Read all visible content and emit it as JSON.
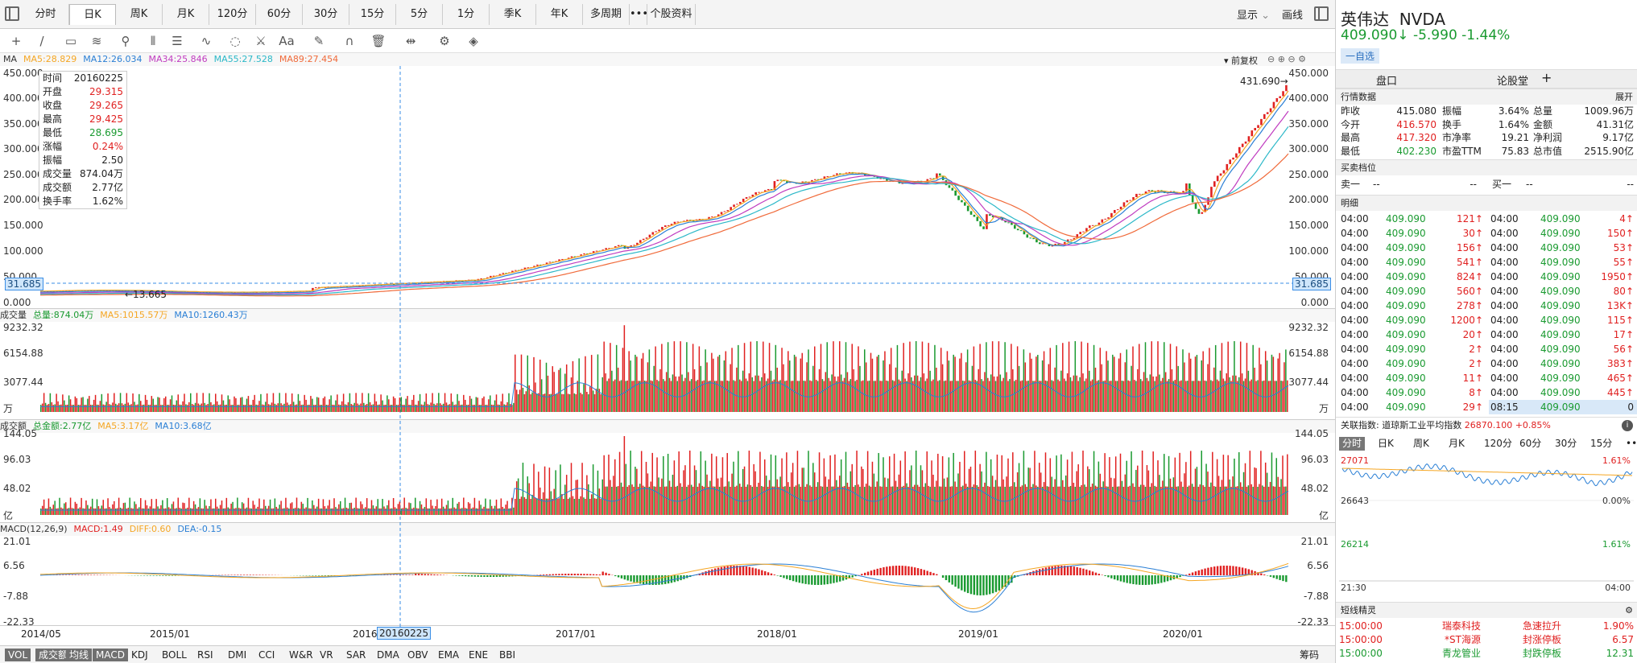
{
  "toolbar": {
    "tabs": [
      "分时",
      "日K",
      "周K",
      "月K",
      "120分",
      "60分",
      "30分",
      "15分",
      "5分",
      "1分",
      "季K",
      "年K",
      "多周期",
      "•••",
      "个股资料"
    ],
    "active": 1,
    "display": "显示",
    "chevron": "⌄",
    "draw": "画线"
  },
  "tools": [
    "+",
    "/",
    "▭",
    "≋",
    "⚲",
    "⦀",
    "☰",
    "∿",
    "◌",
    "⚔",
    "Aa",
    "✎",
    "∩",
    "🗑",
    "⇹",
    "⚙",
    "◈"
  ],
  "main": {
    "ma": [
      {
        "t": "MA",
        "c": "#333"
      },
      {
        "t": "MA5:28.829",
        "c": "#f5a623"
      },
      {
        "t": "MA12:26.034",
        "c": "#2a7fd5"
      },
      {
        "t": "MA34:25.846",
        "c": "#c03cc0"
      },
      {
        "t": "MA55:27.528",
        "c": "#2bb8c8"
      },
      {
        "t": "MA89:27.454",
        "c": "#f06a3a"
      }
    ],
    "fq": "前复权",
    "yl": [
      "450.000",
      "400.000",
      "350.000",
      "300.000",
      "250.000",
      "200.000",
      "150.000",
      "100.000",
      "50.000",
      "0.000"
    ],
    "cross": "31.685",
    "max": "431.690→",
    "min": "←13.665"
  },
  "info": [
    [
      "时间",
      "20160225",
      ""
    ],
    [
      "开盘",
      "29.315",
      "red"
    ],
    [
      "收盘",
      "29.265",
      "red"
    ],
    [
      "最高",
      "29.425",
      "red"
    ],
    [
      "最低",
      "28.695",
      "green"
    ],
    [
      "涨幅",
      "0.24%",
      "red"
    ],
    [
      "振幅",
      "2.50",
      ""
    ],
    [
      "成交量",
      "874.04万",
      ""
    ],
    [
      "成交额",
      "2.77亿",
      ""
    ],
    [
      "换手率",
      "1.62%",
      ""
    ]
  ],
  "vol": {
    "h": [
      {
        "t": "成交量",
        "c": "#333"
      },
      {
        "t": "总量:874.04万",
        "c": "#1a9a30"
      },
      {
        "t": "MA5:1015.57万",
        "c": "#f5a623"
      },
      {
        "t": "MA10:1260.43万",
        "c": "#2a7fd5"
      }
    ],
    "yl": [
      "9232.32",
      "6154.88",
      "3077.44"
    ],
    "unit": "万"
  },
  "amt": {
    "h": [
      {
        "t": "成交额",
        "c": "#333"
      },
      {
        "t": "总金额:2.77亿",
        "c": "#1a9a30"
      },
      {
        "t": "MA5:3.17亿",
        "c": "#f5a623"
      },
      {
        "t": "MA10:3.68亿",
        "c": "#2a7fd5"
      }
    ],
    "yl": [
      "144.05",
      "96.03",
      "48.02"
    ],
    "unit": "亿"
  },
  "macd": {
    "h": [
      {
        "t": "MACD(12,26,9)",
        "c": "#333"
      },
      {
        "t": "MACD:1.49",
        "c": "#e02020"
      },
      {
        "t": "DIFF:0.60",
        "c": "#f5a623"
      },
      {
        "t": "DEA:-0.15",
        "c": "#2a7fd5"
      }
    ],
    "yl": [
      "21.01",
      "6.56",
      "-7.88",
      "-22.33"
    ]
  },
  "xaxis": [
    "2014/05",
    "2015/01",
    "2016/",
    "20160225",
    "2017/01",
    "2018/01",
    "2019/01",
    "2020/01"
  ],
  "bottom": [
    "VOL",
    "成交额",
    "均线",
    "MACD",
    "KDJ",
    "BOLL",
    "RSI",
    "DMI",
    "CCI",
    "W&R",
    "VR",
    "SAR",
    "DMA",
    "OBV",
    "EMA",
    "ENE",
    "BBI"
  ],
  "bottom_on": [
    0,
    1,
    2,
    3
  ],
  "chips": "筹码",
  "stock": {
    "name": "英伟达",
    "code": "NVDA",
    "price": "409.090↓",
    "chg": "-5.990",
    "pct": "-1.44%",
    "fav": "一自选",
    "tabs": [
      "盘口",
      "论股堂",
      "+"
    ]
  },
  "quote_title": "行情数据",
  "expand": "展开",
  "quote": [
    [
      "昨收",
      "415.080",
      "",
      "振幅",
      "3.64%",
      "总量",
      "1009.96万"
    ],
    [
      "今开",
      "416.570",
      "red",
      "换手",
      "1.64%",
      "金额",
      "41.31亿"
    ],
    [
      "最高",
      "417.320",
      "red",
      "市净率",
      "19.21",
      "净利润",
      "9.17亿"
    ],
    [
      "最低",
      "402.230",
      "green",
      "市盈TTM",
      "75.83",
      "总市值",
      "2515.90亿"
    ]
  ],
  "bidask_title": "买卖档位",
  "bidask": [
    "卖一",
    "--",
    "--",
    "买一",
    "--",
    "--"
  ],
  "detail_title": "明细",
  "ticks": [
    [
      "04:00",
      "409.090",
      "121↑",
      "04:00",
      "409.090",
      "4↑"
    ],
    [
      "04:00",
      "409.090",
      "30↑",
      "04:00",
      "409.090",
      "150↑"
    ],
    [
      "04:00",
      "409.090",
      "156↑",
      "04:00",
      "409.090",
      "53↑"
    ],
    [
      "04:00",
      "409.090",
      "541↑",
      "04:00",
      "409.090",
      "55↑"
    ],
    [
      "04:00",
      "409.090",
      "824↑",
      "04:00",
      "409.090",
      "1950↑"
    ],
    [
      "04:00",
      "409.090",
      "560↑",
      "04:00",
      "409.090",
      "80↑"
    ],
    [
      "04:00",
      "409.090",
      "278↑",
      "04:00",
      "409.090",
      "13K↑"
    ],
    [
      "04:00",
      "409.090",
      "1200↑",
      "04:00",
      "409.090",
      "115↑"
    ],
    [
      "04:00",
      "409.090",
      "20↑",
      "04:00",
      "409.090",
      "17↑"
    ],
    [
      "04:00",
      "409.090",
      "2↑",
      "04:00",
      "409.090",
      "56↑"
    ],
    [
      "04:00",
      "409.090",
      "2↑",
      "04:00",
      "409.090",
      "383↑"
    ],
    [
      "04:00",
      "409.090",
      "11↑",
      "04:00",
      "409.090",
      "465↑"
    ],
    [
      "04:00",
      "409.090",
      "8↑",
      "04:00",
      "409.090",
      "445↑"
    ],
    [
      "04:00",
      "409.090",
      "29↑",
      "08:15",
      "409.090",
      "0"
    ]
  ],
  "index": {
    "label": "关联指数:",
    "name": "道琼斯工业平均指数",
    "value": "26870.100",
    "pct": "+0.85%",
    "info": "i"
  },
  "mini_tabs": [
    "分时",
    "日K",
    "周K",
    "月K",
    "120分",
    "60分",
    "30分",
    "15分",
    "•••"
  ],
  "mini": {
    "y1": "27071",
    "y2": "26643",
    "y3": "26214",
    "p1": "1.61%",
    "p2": "0.00%",
    "p3": "1.61%",
    "x1": "21:30",
    "x2": "04:00"
  },
  "short_title": "短线精灵",
  "short": [
    [
      "15:00:00",
      "瑞泰科技",
      "急速拉升",
      "1.90%",
      "red"
    ],
    [
      "15:00:00",
      "*ST海源",
      "封涨停板",
      "6.57",
      "red"
    ],
    [
      "15:00:00",
      "青龙管业",
      "封跌停板",
      "12.31",
      "green"
    ]
  ]
}
